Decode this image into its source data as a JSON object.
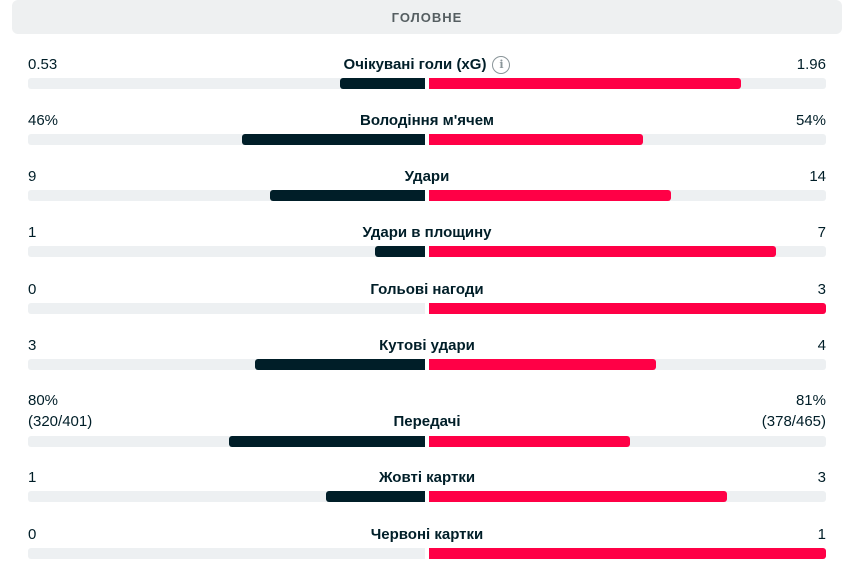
{
  "header": {
    "title": "ГОЛОВНЕ"
  },
  "colors": {
    "home": "#001e28",
    "away": "#ff0046",
    "track": "#edf0f2"
  },
  "stats": [
    {
      "label": "Очікувані голи (xG)",
      "home": "0.53",
      "away": "1.96",
      "home_share": 0.213,
      "away_share": 0.787,
      "info": true
    },
    {
      "label": "Володіння м'ячем",
      "home": "46%",
      "away": "54%",
      "home_share": 0.46,
      "away_share": 0.54
    },
    {
      "label": "Удари",
      "home": "9",
      "away": "14",
      "home_share": 0.391,
      "away_share": 0.609
    },
    {
      "label": "Удари в площину",
      "home": "1",
      "away": "7",
      "home_share": 0.125,
      "away_share": 0.875
    },
    {
      "label": "Гольові нагоди",
      "home": "0",
      "away": "3",
      "home_share": 0.0,
      "away_share": 1.0
    },
    {
      "label": "Кутові удари",
      "home": "3",
      "away": "4",
      "home_share": 0.429,
      "away_share": 0.571
    },
    {
      "label": "Передачі",
      "home": "80%",
      "away": "81%",
      "home_sub": "(320/401)",
      "away_sub": "(378/465)",
      "home_share": 0.494,
      "away_share": 0.506
    },
    {
      "label": "Жовті картки",
      "home": "1",
      "away": "3",
      "home_share": 0.25,
      "away_share": 0.75
    },
    {
      "label": "Червоні картки",
      "home": "0",
      "away": "1",
      "home_share": 0.0,
      "away_share": 1.0
    }
  ]
}
